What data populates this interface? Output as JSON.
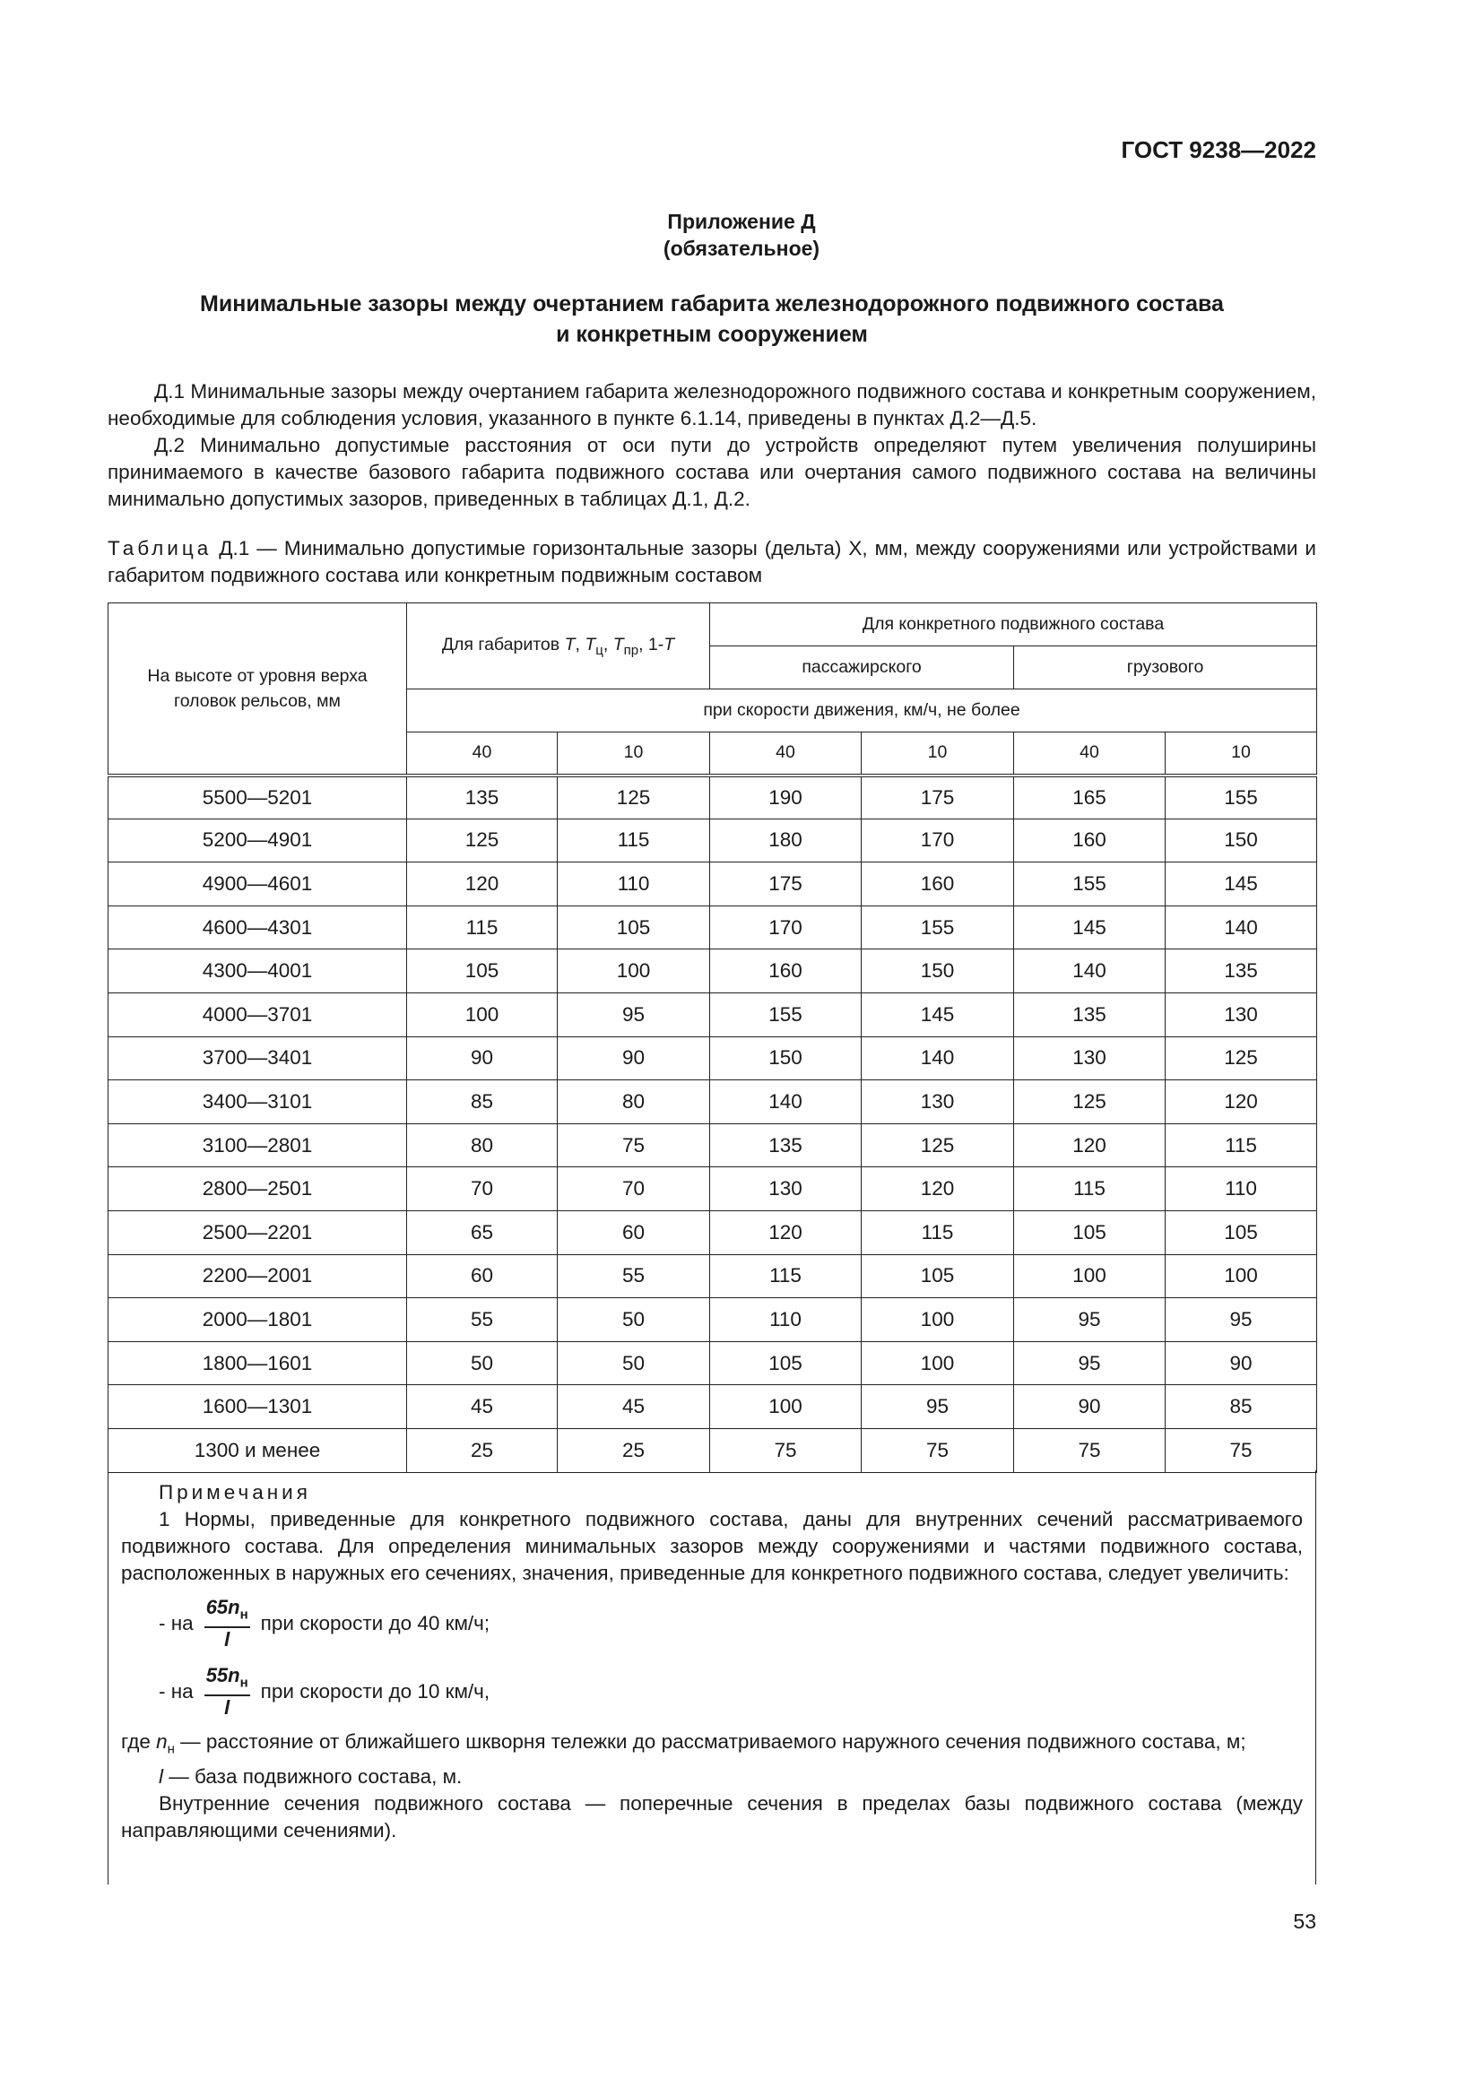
{
  "header": {
    "doc_code": "ГОСТ 9238—2022"
  },
  "appendix": {
    "label": "Приложение Д",
    "status": "(обязательное)"
  },
  "title": {
    "line1": "Минимальные зазоры между очертанием габарита железнодорожного подвижного состава",
    "line2": "и конкретным сооружением"
  },
  "paragraphs": [
    "Д.1 Минимальные зазоры между очертанием габарита железнодорожного подвижного состава и конкретным сооружением, необходимые для соблюдения условия, указанного в пункте 6.1.14, приведены в пунктах Д.2—Д.5.",
    "Д.2 Минимально допустимые расстояния от оси пути до устройств определяют путем увеличения полуширины принимаемого в качестве базового габарита подвижного состава или очертания самого подвижного состава на величины минимально допустимых зазоров, приведенных в таблицах Д.1, Д.2."
  ],
  "table_caption": {
    "prefix": "Таблица",
    "text": " Д.1 — Минимально допустимые горизонтальные зазоры (дельта) X, мм, между сооружениями или устройствами и габаритом подвижного состава или конкретным подвижным составом"
  },
  "table": {
    "header": {
      "height_col": "На высоте от уровня верха головок рельсов, мм",
      "gauges_prefix": "Для габаритов ",
      "gauges": [
        "T",
        "Tц",
        "Tпр",
        "1-T"
      ],
      "gauge_T": "T",
      "gauge_Tc_sub": "ц",
      "gauge_Tpr_sub": "пр",
      "gauge_1T": "1-T",
      "specific": "Для конкретного подвижного состава",
      "passenger": "пассажирского",
      "freight": "грузового",
      "speed": "при скорости движения, км/ч, не более",
      "speeds": [
        "40",
        "10",
        "40",
        "10",
        "40",
        "10"
      ]
    },
    "rows": [
      [
        "5500—5201",
        "135",
        "125",
        "190",
        "175",
        "165",
        "155"
      ],
      [
        "5200—4901",
        "125",
        "115",
        "180",
        "170",
        "160",
        "150"
      ],
      [
        "4900—4601",
        "120",
        "110",
        "175",
        "160",
        "155",
        "145"
      ],
      [
        "4600—4301",
        "115",
        "105",
        "170",
        "155",
        "145",
        "140"
      ],
      [
        "4300—4001",
        "105",
        "100",
        "160",
        "150",
        "140",
        "135"
      ],
      [
        "4000—3701",
        "100",
        "95",
        "155",
        "145",
        "135",
        "130"
      ],
      [
        "3700—3401",
        "90",
        "90",
        "150",
        "140",
        "130",
        "125"
      ],
      [
        "3400—3101",
        "85",
        "80",
        "140",
        "130",
        "125",
        "120"
      ],
      [
        "3100—2801",
        "80",
        "75",
        "135",
        "125",
        "120",
        "115"
      ],
      [
        "2800—2501",
        "70",
        "70",
        "130",
        "120",
        "115",
        "110"
      ],
      [
        "2500—2201",
        "65",
        "60",
        "120",
        "115",
        "105",
        "105"
      ],
      [
        "2200—2001",
        "60",
        "55",
        "115",
        "105",
        "100",
        "100"
      ],
      [
        "2000—1801",
        "55",
        "50",
        "110",
        "100",
        "95",
        "95"
      ],
      [
        "1800—1601",
        "50",
        "50",
        "105",
        "100",
        "95",
        "90"
      ],
      [
        "1600—1301",
        "45",
        "45",
        "100",
        "95",
        "90",
        "85"
      ],
      [
        "1300 и менее",
        "25",
        "25",
        "75",
        "75",
        "75",
        "75"
      ]
    ]
  },
  "notes": {
    "heading": "Примечания",
    "note1": "1 Нормы, приведенные для конкретного подвижного состава, даны для внутренних сечений рассматриваемого подвижного состава. Для определения минимальных зазоров между сооружениями и частями подвижного состава, расположенных в наружных его сечениях, значения, приведенные для конкретного подвижного состава, следует увеличить:",
    "formula1": {
      "prefix": "- на",
      "numerator": "65n",
      "num_sub": "н",
      "denominator": "l",
      "suffix": "при скорости до 40 км/ч;"
    },
    "formula2": {
      "prefix": "- на",
      "numerator": "55n",
      "num_sub": "н",
      "denominator": "l",
      "suffix": "при скорости до 10 км/ч,"
    },
    "where_prefix": "где ",
    "where_var": "n",
    "where_sub": "н",
    "where_text": " — расстояние от ближайшего шкворня тележки до рассматриваемого наружного сечения подвижного состава, м;",
    "l_var": "l",
    "l_text": " — база подвижного состава, м.",
    "inner": "Внутренние сечения подвижного состава — поперечные сечения в пределах базы подвижного состава (между направляющими сечениями)."
  },
  "page_number": "53"
}
